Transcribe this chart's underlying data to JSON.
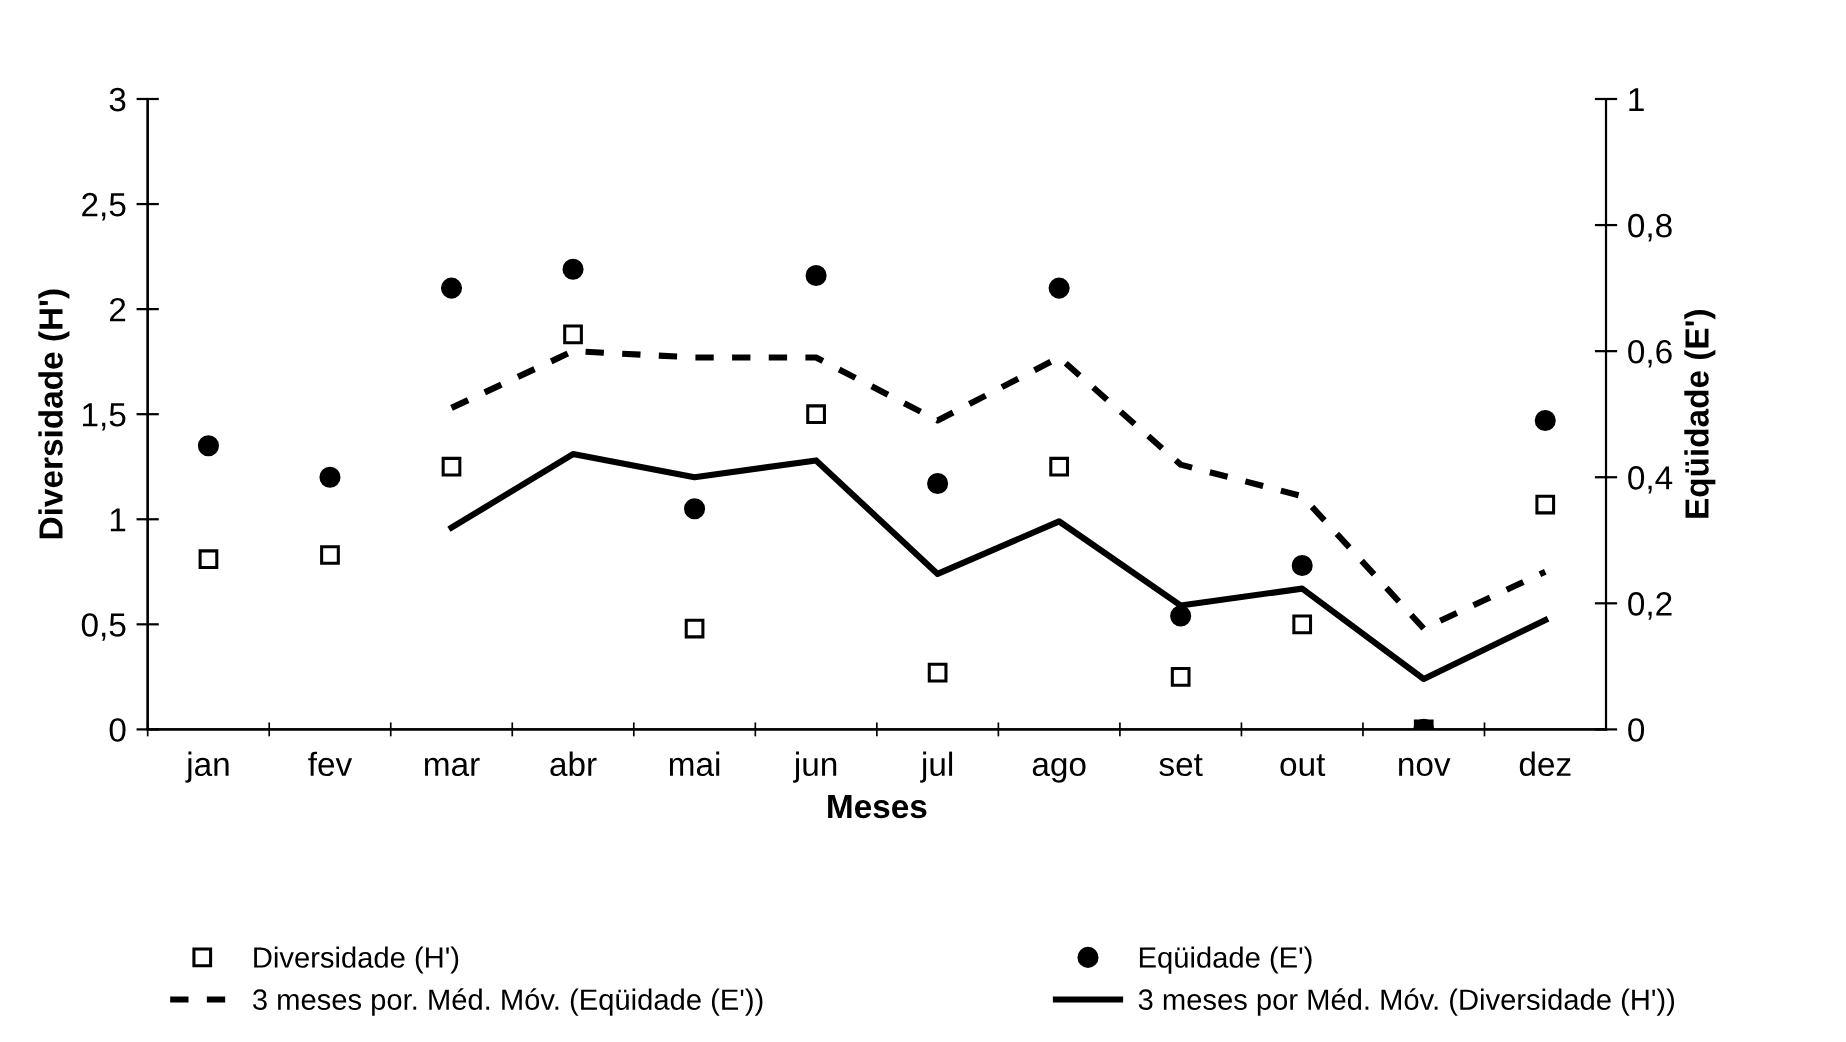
{
  "chart_data": {
    "type": "scatter",
    "xlabel": "Meses",
    "ylabel": "Diversidade (H')",
    "y2label": "Eqüidade (E')",
    "categories": [
      "jan",
      "fev",
      "mar",
      "abr",
      "mai",
      "jun",
      "jul",
      "ago",
      "set",
      "out",
      "nov",
      "dez"
    ],
    "series": [
      {
        "name": "Diversidade (H')",
        "marker": "square",
        "color": "#000000",
        "values": [
          0.81,
          0.83,
          1.25,
          1.88,
          0.48,
          1.5,
          0.27,
          1.25,
          0.25,
          0.5,
          0,
          1.07
        ]
      },
      {
        "name": "Eqüidade (E')",
        "marker": "circle",
        "axis": "y2",
        "color": "#000000",
        "values": [
          0.45,
          0.4,
          0.7,
          0.73,
          0.35,
          0.72,
          0.39,
          0.7,
          0.18,
          0.26,
          0,
          0.49
        ]
      },
      {
        "name": "3 meses por. Méd. Móv. (Eqüidade (E'))",
        "type": "line",
        "line_style": "dashed",
        "marker": "none",
        "axis": "y2",
        "color": "#000000",
        "values": [
          null,
          null,
          0.51,
          0.6,
          0.59,
          0.59,
          0.49,
          0.59,
          0.42,
          0.37,
          0.16,
          0.25
        ]
      },
      {
        "name": "3 meses por Méd. Móv. (Diversidade (H'))",
        "type": "line",
        "line_style": "solid",
        "marker": "none",
        "color": "#000000",
        "values": [
          null,
          null,
          0.96,
          1.31,
          1.2,
          1.28,
          0.74,
          0.99,
          0.59,
          0.67,
          0.24,
          0.52
        ]
      }
    ],
    "ylim": [
      0,
      3
    ],
    "yticks": [
      0,
      {
        "value": 0.5,
        "label": "0,5"
      },
      1,
      {
        "value": 1.5,
        "label": "1,5"
      },
      2,
      {
        "value": 2.5,
        "label": "2,5"
      },
      3
    ],
    "y2lim": [
      0,
      1
    ],
    "y2ticks": [
      0,
      {
        "value": 0.2,
        "label": "0,2"
      },
      {
        "value": 0.4,
        "label": "0,4"
      },
      {
        "value": 0.6,
        "label": "0,6"
      },
      {
        "value": 0.8,
        "label": "0,8"
      },
      1
    ],
    "grid": false,
    "legend": "bottom"
  }
}
